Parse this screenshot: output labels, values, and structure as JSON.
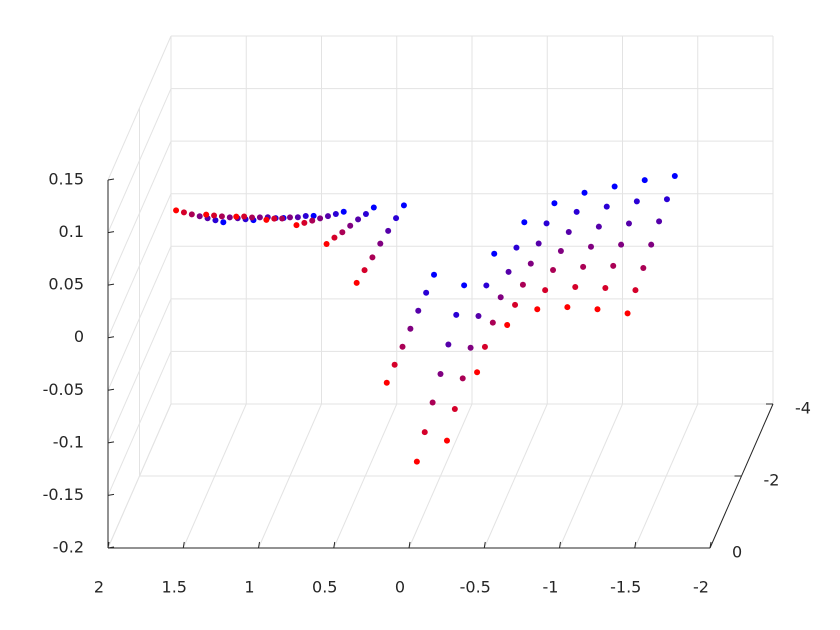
{
  "chart_data": {
    "type": "scatter3d",
    "xlim": [
      -2,
      2
    ],
    "ylim": [
      -4,
      0
    ],
    "zlim": [
      -0.2,
      0.15
    ],
    "xticks": [
      2,
      1.5,
      1,
      0.5,
      0,
      -0.5,
      -1,
      -1.5,
      -2
    ],
    "yticks": [
      0,
      -2,
      -4
    ],
    "zticks": [
      0.15,
      0.1,
      0.05,
      0,
      -0.05,
      -0.1,
      -0.15,
      -0.2
    ],
    "grid": true,
    "x": [
      1.6,
      1.4,
      1.2,
      1.0,
      0.8,
      0.6,
      0.4,
      0.2,
      0.0,
      -0.2,
      -0.4,
      -0.6,
      -0.8,
      -1.0,
      -1.2,
      -1.4
    ],
    "series": [
      {
        "color": "#ff0000",
        "depth": -0.5,
        "values": [
          0.104,
          0.1,
          0.098,
          0.095,
          0.09,
          0.072,
          0.035,
          -0.06,
          -0.135,
          -0.115,
          -0.05,
          -0.005,
          0.01,
          0.012,
          0.01,
          0.006
        ]
      },
      {
        "color": "#d5002a",
        "depth": -1,
        "values": [
          0.085,
          0.082,
          0.081,
          0.079,
          0.075,
          0.061,
          0.03,
          -0.06,
          -0.124,
          -0.102,
          -0.043,
          -0.003,
          0.011,
          0.014,
          0.013,
          0.011
        ]
      },
      {
        "color": "#aa0055",
        "depth": -1.5,
        "values": [
          0.066,
          0.064,
          0.063,
          0.062,
          0.06,
          0.049,
          0.025,
          -0.06,
          -0.113,
          -0.09,
          -0.037,
          -0.001,
          0.013,
          0.016,
          0.017,
          0.015
        ]
      },
      {
        "color": "#800080",
        "depth": -2,
        "values": [
          0.047,
          0.046,
          0.046,
          0.046,
          0.045,
          0.038,
          0.021,
          -0.06,
          -0.103,
          -0.078,
          -0.03,
          0.002,
          0.014,
          0.018,
          0.02,
          0.02
        ]
      },
      {
        "color": "#5500aa",
        "depth": -2.5,
        "values": [
          0.028,
          0.028,
          0.029,
          0.029,
          0.03,
          0.027,
          0.016,
          -0.06,
          -0.092,
          -0.065,
          -0.023,
          0.004,
          0.015,
          0.02,
          0.023,
          0.025
        ]
      },
      {
        "color": "#2a00d5",
        "depth": -3,
        "values": [
          0.009,
          0.01,
          0.011,
          0.013,
          0.015,
          0.015,
          0.011,
          -0.06,
          -0.081,
          -0.053,
          -0.017,
          0.006,
          0.017,
          0.022,
          0.027,
          0.029
        ]
      },
      {
        "color": "#0000ff",
        "depth": -3.5,
        "values": [
          -0.01,
          -0.008,
          -0.006,
          -0.004,
          0.0,
          0.004,
          0.006,
          -0.06,
          -0.07,
          -0.04,
          -0.01,
          0.008,
          0.018,
          0.024,
          0.03,
          0.034
        ]
      }
    ]
  }
}
